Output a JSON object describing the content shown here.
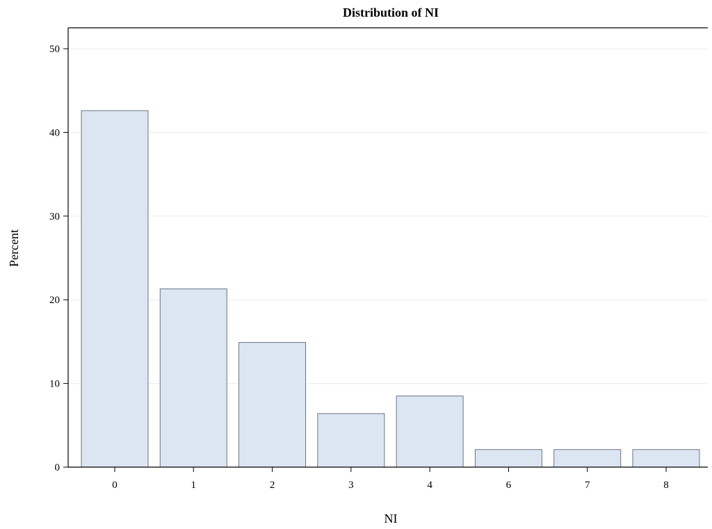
{
  "chart_data": {
    "type": "bar",
    "title": "Distribution of NI",
    "xlabel": "NI",
    "ylabel": "Percent",
    "categories": [
      "0",
      "1",
      "2",
      "3",
      "4",
      "6",
      "7",
      "8"
    ],
    "values": [
      42.6,
      21.3,
      14.9,
      6.4,
      8.5,
      2.1,
      2.1,
      2.1
    ],
    "ylim": [
      0,
      52.5
    ],
    "yticks": [
      0,
      10,
      20,
      30,
      40,
      50
    ],
    "grid": true,
    "colors": {
      "bar_fill": "#dce6f2",
      "bar_stroke": "#6b7480"
    }
  }
}
